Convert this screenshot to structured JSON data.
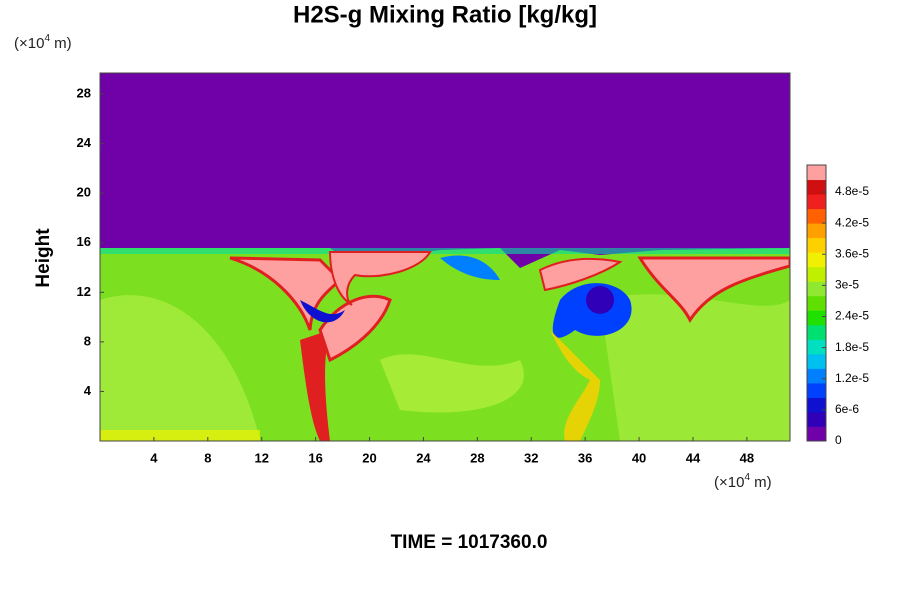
{
  "chart_data": {
    "type": "heatmap",
    "title": "H2S-g Mixing Ratio [kg/kg]",
    "y_label": "Height",
    "y_unit": {
      "prefix": "(×10",
      "exponent": "4",
      "suffix": " m)"
    },
    "x_unit": {
      "prefix": "(×10",
      "exponent": "4",
      "suffix": " m)"
    },
    "footer": "TIME = 1017360.0",
    "xlim": [
      0,
      51.2
    ],
    "xticks": [
      4,
      8,
      12,
      16,
      20,
      24,
      28,
      32,
      36,
      40,
      44,
      48
    ],
    "ylim": [
      0,
      29.7
    ],
    "yticks": [
      4,
      8,
      12,
      16,
      20,
      24,
      28
    ],
    "colorbar": {
      "lim": [
        0,
        5.32e-05
      ],
      "ticks": [
        {
          "value": 0,
          "label": "0"
        },
        {
          "value": 6e-06,
          "label": "6e-6"
        },
        {
          "value": 1.2e-05,
          "label": "1.2e-5"
        },
        {
          "value": 1.8e-05,
          "label": "1.8e-5"
        },
        {
          "value": 2.4e-05,
          "label": "2.4e-5"
        },
        {
          "value": 3e-05,
          "label": "3e-5"
        },
        {
          "value": 3.6e-05,
          "label": "3.6e-5"
        },
        {
          "value": 4.2e-05,
          "label": "4.2e-5"
        },
        {
          "value": 4.8e-05,
          "label": "4.8e-5"
        }
      ],
      "colors": [
        "#7000a8",
        "#3000b8",
        "#1010d0",
        "#0040ff",
        "#0080ff",
        "#00c0f0",
        "#00e0c0",
        "#00e070",
        "#20e000",
        "#60e000",
        "#90e830",
        "#c0f000",
        "#f0f000",
        "#ffd000",
        "#ffa000",
        "#ff6000",
        "#f02020",
        "#d01010",
        "#ffa0a0"
      ]
    }
  }
}
